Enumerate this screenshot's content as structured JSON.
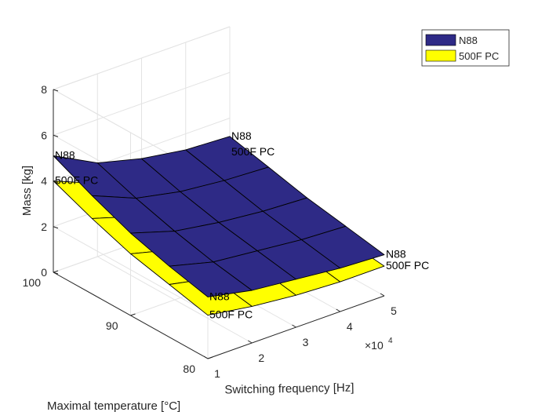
{
  "chart_data": {
    "type": "surface",
    "x": [
      1,
      2,
      3,
      4,
      5
    ],
    "x_unit": "x10^4",
    "y": [
      80,
      85,
      90,
      95,
      100
    ],
    "zlim": [
      0,
      8
    ],
    "xlabel": "Switching frequency [Hz]",
    "ylabel": "Maximal temperature [°C]",
    "zlabel": "Mass [kg]",
    "x_exponent": {
      "base": "×10",
      "power": "4"
    },
    "x_ticks": [
      "1",
      "2",
      "3",
      "4",
      "5"
    ],
    "y_ticks": [
      "80",
      "90",
      "100"
    ],
    "z_ticks": [
      "0",
      "2",
      "4",
      "6",
      "8"
    ],
    "grid": true,
    "legend_position": "top-right",
    "series": [
      {
        "name": "N88",
        "color": "#2e2a86",
        "z": [
          [
            2.7,
            2.3,
            2.1,
            1.9,
            1.8
          ],
          [
            3.1,
            2.6,
            2.4,
            2.2,
            2.1
          ],
          [
            3.6,
            3.0,
            2.7,
            2.5,
            2.4
          ],
          [
            4.3,
            3.5,
            3.1,
            2.9,
            2.8
          ],
          [
            5.1,
            4.1,
            3.6,
            3.3,
            3.2
          ]
        ]
      },
      {
        "name": "500F PC",
        "color": "#ffff00",
        "z": [
          [
            1.9,
            1.6,
            1.4,
            1.3,
            1.3
          ],
          [
            2.3,
            1.9,
            1.7,
            1.6,
            1.5
          ],
          [
            2.7,
            2.2,
            2.0,
            1.9,
            1.8
          ],
          [
            3.3,
            2.7,
            2.3,
            2.2,
            2.1
          ],
          [
            4.0,
            3.2,
            2.8,
            2.6,
            2.5
          ]
        ]
      }
    ],
    "annotations": [
      {
        "text": "N88",
        "x": 1,
        "y": 100,
        "z": 5.1
      },
      {
        "text": "500F PC",
        "x": 1,
        "y": 100,
        "z": 4.0
      },
      {
        "text": "N88",
        "x": 5,
        "y": 100,
        "z": 3.2
      },
      {
        "text": "500F PC",
        "x": 5,
        "y": 100,
        "z": 2.5
      },
      {
        "text": "N88",
        "x": 1,
        "y": 80,
        "z": 2.7
      },
      {
        "text": "500F PC",
        "x": 1,
        "y": 80,
        "z": 1.9
      },
      {
        "text": "N88",
        "x": 5,
        "y": 80,
        "z": 1.8
      },
      {
        "text": "500F PC",
        "x": 5,
        "y": 80,
        "z": 1.3
      }
    ]
  }
}
